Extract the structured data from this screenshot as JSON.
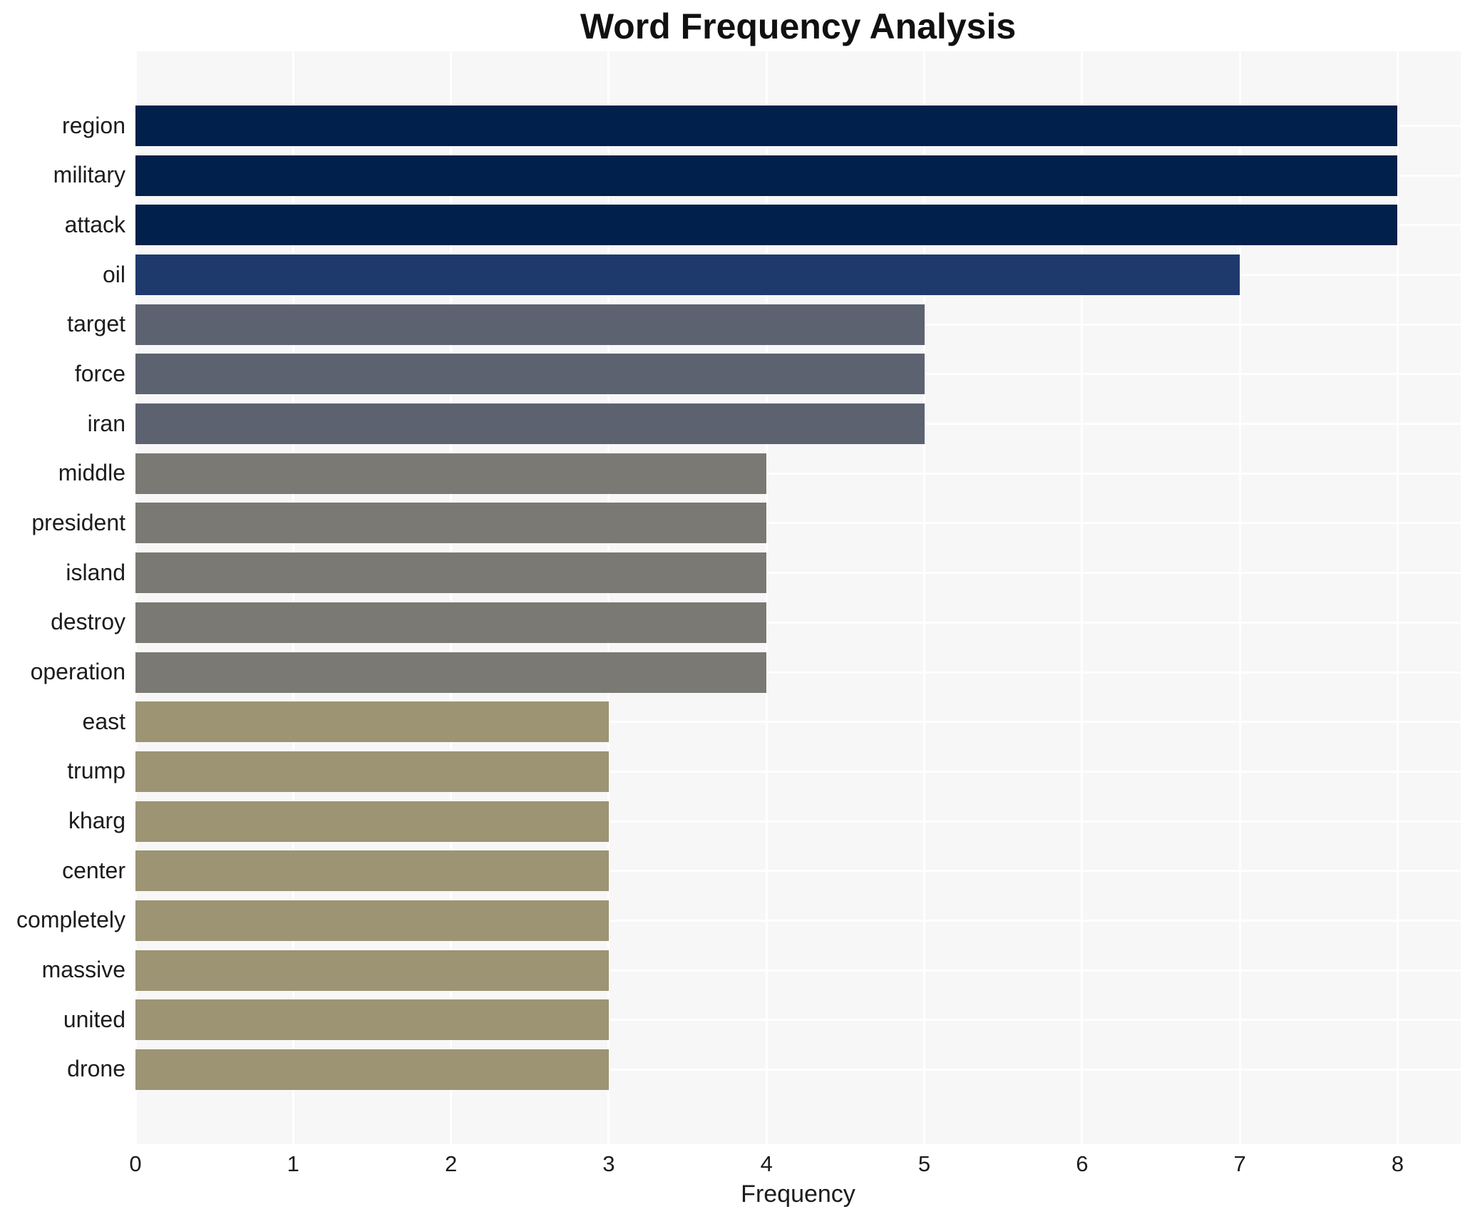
{
  "chart_data": {
    "type": "bar",
    "orientation": "horizontal",
    "title": "Word Frequency Analysis",
    "xlabel": "Frequency",
    "ylabel": "",
    "categories": [
      "region",
      "military",
      "attack",
      "oil",
      "target",
      "force",
      "iran",
      "middle",
      "president",
      "island",
      "destroy",
      "operation",
      "east",
      "trump",
      "kharg",
      "center",
      "completely",
      "massive",
      "united",
      "drone"
    ],
    "values": [
      8,
      8,
      8,
      7,
      5,
      5,
      5,
      4,
      4,
      4,
      4,
      4,
      3,
      3,
      3,
      3,
      3,
      3,
      3,
      3
    ],
    "xticks": [
      0,
      1,
      2,
      3,
      4,
      5,
      6,
      7,
      8
    ],
    "xlim": [
      0,
      8.4
    ],
    "grid": true,
    "legend": false,
    "plot_bg_color": "#f7f7f7",
    "grid_color": "#ffffff",
    "text_color": "#1c1c1c",
    "title_color": "#111111",
    "value_colors": {
      "8": "#02204c",
      "7": "#1e3a6c",
      "5": "#5c6270",
      "4": "#7b7974",
      "3": "#9c9473"
    }
  }
}
